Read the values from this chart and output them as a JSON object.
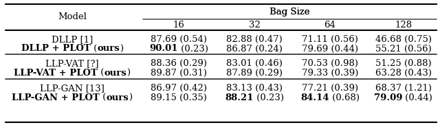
{
  "title": "Bag Size",
  "col_header": [
    "Model",
    "16",
    "32",
    "64",
    "128"
  ],
  "rows": [
    {
      "group": 0,
      "label_normal": "DLLP [1]",
      "label_bold": "",
      "values": [
        "87.69 (0.54)",
        "82.88 (0.47)",
        "71.11 (0.56)",
        "46.68 (0.75)"
      ],
      "bold_values": [
        false,
        false,
        false,
        false
      ]
    },
    {
      "group": 0,
      "label_normal": " (",
      "label_bold": "DLLP + PLOT",
      "label_suffix_bold": "ours",
      "label_suffix_normal": ")",
      "values": [
        "90.01 (0.23)",
        "86.87 (0.24)",
        "79.69 (0.44)",
        "55.21 (0.56)"
      ],
      "bold_values": [
        true,
        false,
        false,
        false
      ]
    },
    {
      "group": 1,
      "label_normal": "LLP-VAT [?]",
      "label_bold": "",
      "values": [
        "88.36 (0.29)",
        "83.01 (0.46)",
        "70.53 (0.98)",
        "51.25 (0.88)"
      ],
      "bold_values": [
        false,
        false,
        false,
        false
      ]
    },
    {
      "group": 1,
      "label_normal": " (",
      "label_bold": "LLP-VAT + PLOT",
      "label_suffix_bold": "ours",
      "label_suffix_normal": ")",
      "values": [
        "89.87 (0.31)",
        "87.89 (0.29)",
        "79.33 (0.39)",
        "63.28 (0.43)"
      ],
      "bold_values": [
        false,
        false,
        false,
        false
      ]
    },
    {
      "group": 2,
      "label_normal": "LLP-GAN [13]",
      "label_bold": "",
      "values": [
        "86.97 (0.42)",
        "83.13 (0.43)",
        "77.21 (0.39)",
        "68.37 (1.21)"
      ],
      "bold_values": [
        false,
        false,
        false,
        false
      ]
    },
    {
      "group": 2,
      "label_normal": " (",
      "label_bold": "LLP-GAN + PLOT",
      "label_suffix_bold": "ours",
      "label_suffix_normal": ")",
      "values": [
        "89.15 (0.35)",
        "88.21 (0.23)",
        "84.14 (0.68)",
        "79.09 (0.44)"
      ],
      "bold_values": [
        false,
        true,
        true,
        true
      ]
    }
  ],
  "font_size": 9.5,
  "bg_color": "#ffffff",
  "line_color": "#000000"
}
